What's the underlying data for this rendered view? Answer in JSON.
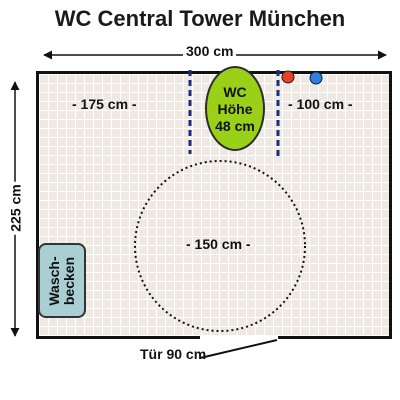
{
  "title": "WC Central Tower München",
  "dimensions": {
    "width": "300 cm",
    "height": "225 cm",
    "left_space": "- 175 cm -",
    "right_space": "- 100 cm -",
    "turning_circle": "- 150 cm -",
    "door": "Tür 90 cm"
  },
  "toilet": {
    "line1": "WC",
    "line2": "Höhe",
    "line3": "48 cm"
  },
  "sink": {
    "line1": "Wasch-",
    "line2": "becken"
  },
  "colors": {
    "toilet": "#9ad018",
    "sink": "#a9cfd3",
    "blue_dot": "#2e7fe0",
    "red_dot": "#e8402a",
    "dash": "#1c2a80"
  }
}
